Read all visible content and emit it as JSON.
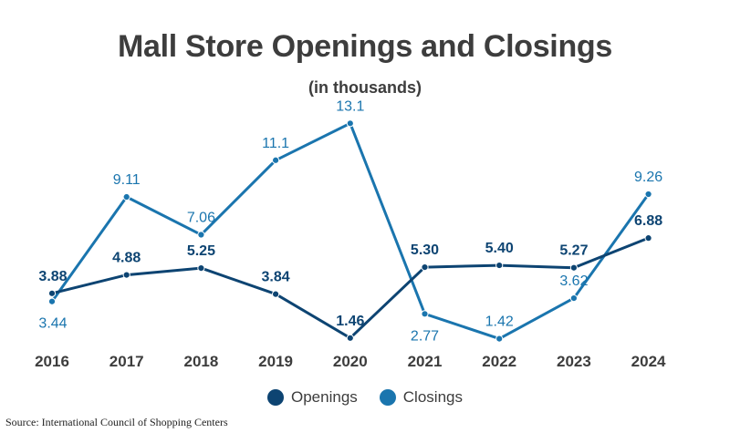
{
  "title": "Mall Store Openings and Closings",
  "subtitle": "(in thousands)",
  "source": "Source: International Council of Shopping Centers",
  "colors": {
    "openings": "#0d4472",
    "closings": "#1a75ae",
    "text": "#3d3d3d"
  },
  "chart_data": {
    "type": "line",
    "title": "Mall Store Openings and Closings",
    "subtitle": "(in thousands)",
    "x": [
      "2016",
      "2017",
      "2018",
      "2019",
      "2020",
      "2021",
      "2022",
      "2023",
      "2024"
    ],
    "series": [
      {
        "name": "Openings",
        "values": [
          3.88,
          4.88,
          5.25,
          3.84,
          1.46,
          5.3,
          5.4,
          5.27,
          6.88
        ],
        "labels": [
          "3.88",
          "4.88",
          "5.25",
          "3.84",
          "1.46",
          "5.30",
          "5.40",
          "5.27",
          "6.88"
        ]
      },
      {
        "name": "Closings",
        "values": [
          3.44,
          9.11,
          7.06,
          11.1,
          13.1,
          2.77,
          1.42,
          3.62,
          9.26
        ],
        "labels": [
          "3.44",
          "9.11",
          "7.06",
          "11.1",
          "13.1",
          "2.77",
          "1.42",
          "3.62",
          "9.26"
        ]
      }
    ],
    "legend": "bottom-center",
    "grid": false
  }
}
